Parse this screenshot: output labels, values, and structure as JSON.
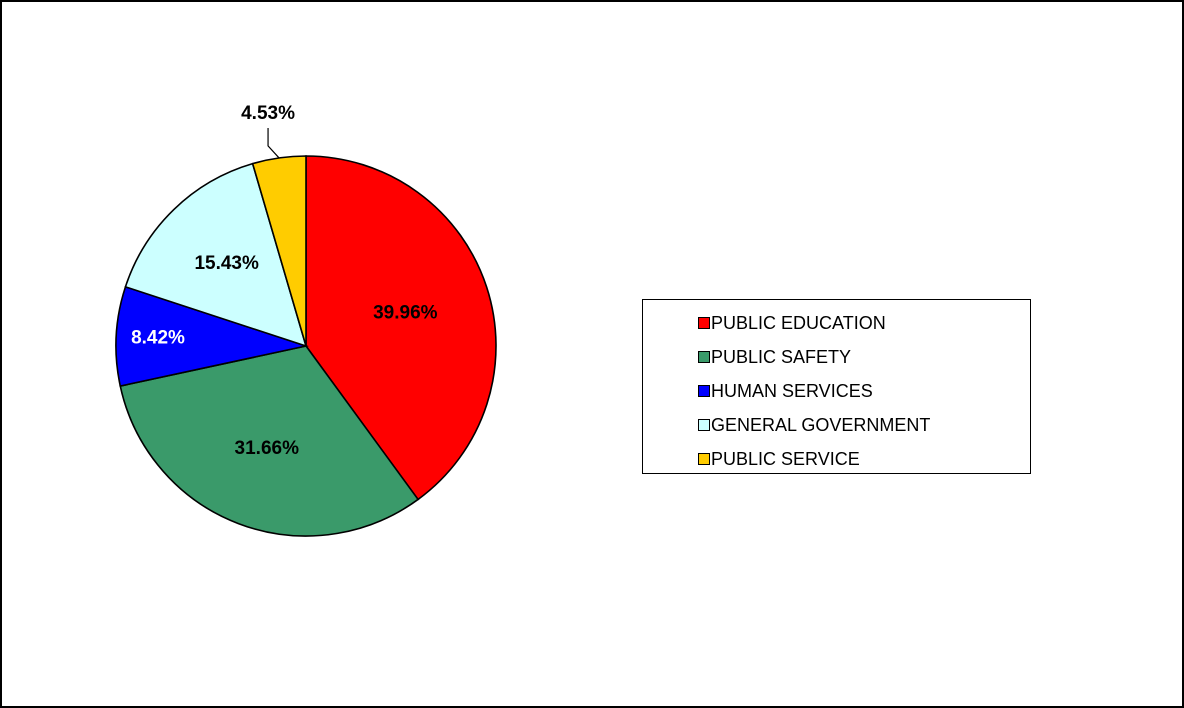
{
  "chart_data": {
    "type": "pie",
    "title": "",
    "slices": [
      {
        "name": "PUBLIC EDUCATION",
        "value": 39.96,
        "label": "39.96%",
        "color": "#ff0000",
        "label_color": "#000000"
      },
      {
        "name": "PUBLIC SAFETY",
        "value": 31.66,
        "label": "31.66%",
        "color": "#3a9a6a",
        "label_color": "#000000"
      },
      {
        "name": "HUMAN SERVICES",
        "value": 8.42,
        "label": "8.42%",
        "color": "#0000ff",
        "label_color": "#ffffff"
      },
      {
        "name": "GENERAL GOVERNMENT",
        "value": 15.43,
        "label": "15.43%",
        "color": "#ccffff",
        "label_color": "#000000"
      },
      {
        "name": "PUBLIC SERVICE",
        "value": 4.53,
        "label": "4.53%",
        "color": "#ffcc00",
        "label_color": "#000000"
      }
    ],
    "start": "12 o'clock",
    "direction": "clockwise",
    "legend_position": "right"
  }
}
